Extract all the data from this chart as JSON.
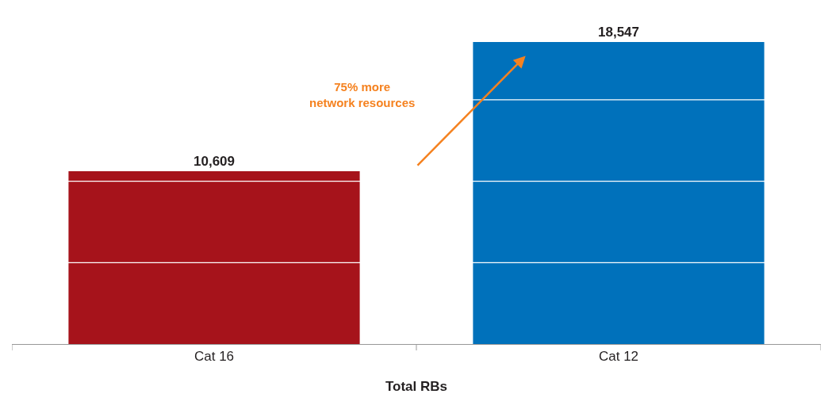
{
  "chart_data": {
    "type": "bar",
    "xlabel": "Total RBs",
    "categories": [
      "Cat 16",
      "Cat 12"
    ],
    "values": [
      10609,
      18547
    ],
    "colors": [
      "#a6131b",
      "#0071bb"
    ],
    "value_labels": [
      "10,609",
      "18,547"
    ],
    "yticks": [
      {
        "value": 5000,
        "label": null
      },
      {
        "value": 10000,
        "label": null
      },
      {
        "value": 15000,
        "label": null
      }
    ],
    "grid": "y",
    "tick_labels": "x",
    "legend": false,
    "annotations": [
      "75% more\nnetwork resources"
    ]
  }
}
